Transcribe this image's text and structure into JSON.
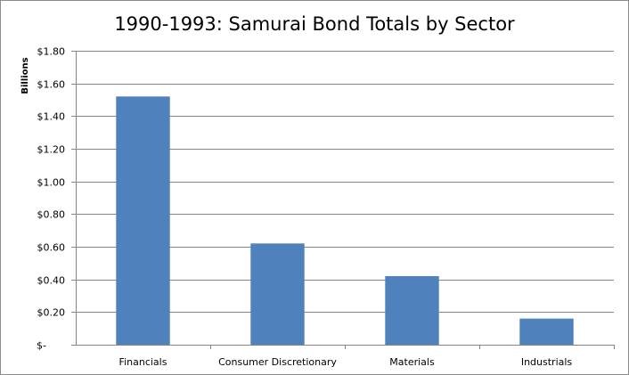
{
  "chart_data": {
    "type": "bar",
    "title": "1990-1993: Samurai Bond  Totals by Sector",
    "ylabel": "Billions",
    "xlabel": "",
    "categories": [
      "Financials",
      "Consumer Discretionary",
      "Materials",
      "Industrials"
    ],
    "values": [
      1.52,
      0.62,
      0.42,
      0.16
    ],
    "ylim": [
      0,
      1.8
    ],
    "yticks": [
      0,
      0.2,
      0.4,
      0.6,
      0.8,
      1.0,
      1.2,
      1.4,
      1.6,
      1.8
    ],
    "ytick_labels": [
      "$-",
      "$0.20",
      "$0.40",
      "$0.60",
      "$0.80",
      "$1.00",
      "$1.20",
      "$1.40",
      "$1.60",
      "$1.80"
    ],
    "grid": true,
    "legend": "none",
    "colors": {
      "bar": "#4f81bd",
      "grid": "#868686",
      "axis": "#868686",
      "frame": "#8c8c8c"
    }
  }
}
